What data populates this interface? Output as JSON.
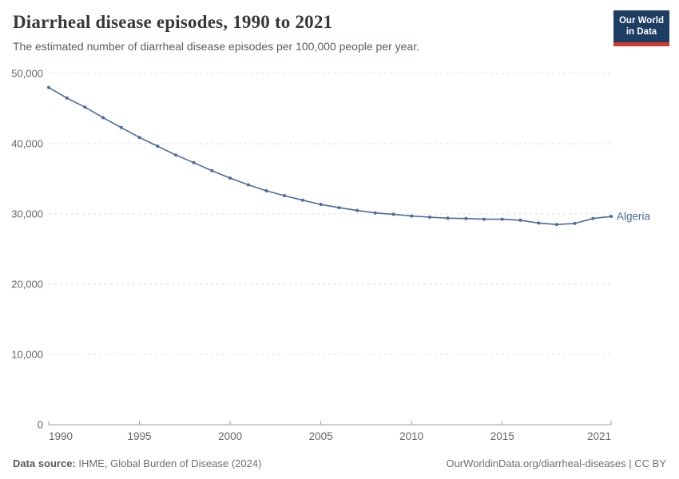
{
  "header": {
    "title": "Diarrheal disease episodes, 1990 to 2021",
    "subtitle": "The estimated number of diarrheal disease episodes per 100,000 people per year."
  },
  "logo": {
    "line1": "Our World",
    "line2": "in Data",
    "bg_color": "#1d3d63",
    "bar_color": "#cf3a32"
  },
  "chart_data": {
    "type": "line",
    "title": "Diarrheal disease episodes, 1990 to 2021",
    "xlabel": "",
    "ylabel": "",
    "xlim": [
      1990,
      2021
    ],
    "ylim": [
      0,
      50000
    ],
    "xticks": [
      1990,
      1995,
      2000,
      2005,
      2010,
      2015,
      2021
    ],
    "yticks": [
      0,
      10000,
      20000,
      30000,
      40000,
      50000
    ],
    "grid": "horizontal-dashed",
    "legend_position": "end-of-line label",
    "colors": {
      "gridline": "#dcdcdc",
      "axis": "#9e9e9e",
      "tick_label": "#666666"
    },
    "series": [
      {
        "name": "Algeria",
        "color": "#4c6a9c",
        "x": [
          1990,
          1991,
          1992,
          1993,
          1994,
          1995,
          1996,
          1997,
          1998,
          1999,
          2000,
          2001,
          2002,
          2003,
          2004,
          2005,
          2006,
          2007,
          2008,
          2009,
          2010,
          2011,
          2012,
          2013,
          2014,
          2015,
          2016,
          2017,
          2018,
          2019,
          2020,
          2021
        ],
        "values": [
          48000,
          46500,
          45200,
          43700,
          42300,
          40900,
          39650,
          38400,
          37300,
          36150,
          35100,
          34150,
          33300,
          32600,
          31950,
          31350,
          30900,
          30500,
          30150,
          29950,
          29700,
          29550,
          29400,
          29350,
          29250,
          29250,
          29100,
          28700,
          28500,
          28650,
          29350,
          29650
        ]
      }
    ]
  },
  "footer": {
    "datasource_label": "Data source:",
    "datasource_value": " IHME, Global Burden of Disease (2024)",
    "right_text": "OurWorldinData.org/diarrheal-diseases | CC BY"
  }
}
